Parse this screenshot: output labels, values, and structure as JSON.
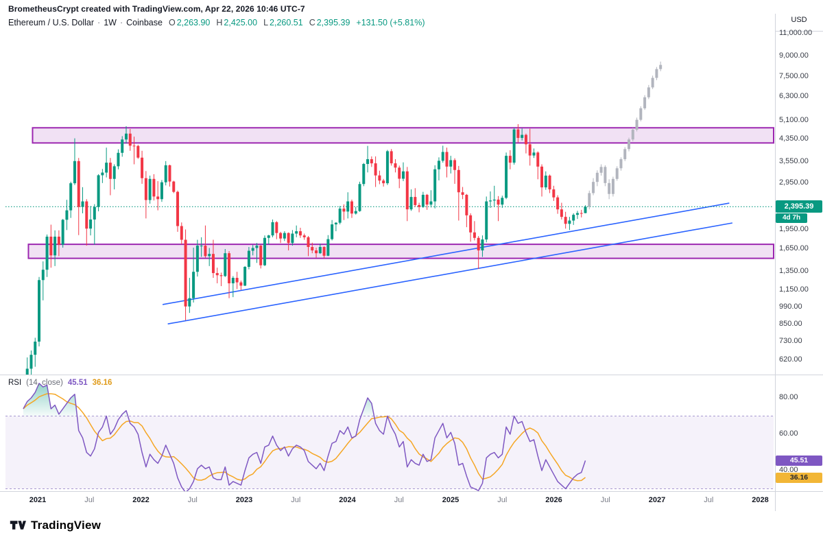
{
  "header": {
    "attribution": "BrometheusCrypt created with TradingView.com, Apr 22, 2026 10:46 UTC-7",
    "symbol": "Ethereum / U.S. Dollar",
    "separator": "·",
    "interval": "1W",
    "exchange": "Coinbase",
    "ohlc": {
      "o_label": "O",
      "o": "2,263.90",
      "h_label": "H",
      "h": "2,425.00",
      "l_label": "L",
      "l": "2,260.51",
      "c_label": "C",
      "c": "2,395.39",
      "change": "+131.50 (+5.81%)"
    }
  },
  "price_axis": {
    "currency_label": "USD",
    "ticks": [
      "11,000.00",
      "9,000.00",
      "7,500.00",
      "6,300.00",
      "5,100.00",
      "4,350.00",
      "3,550.00",
      "2,950.00",
      "1,950.00",
      "1,650.00",
      "1,350.00",
      "1,150.00",
      "990.00",
      "850.00",
      "730.00",
      "620.00"
    ],
    "tick_values": [
      11000,
      9000,
      7500,
      6300,
      5100,
      4350,
      3550,
      2950,
      1950,
      1650,
      1350,
      1150,
      990,
      850,
      730,
      620
    ],
    "last_price_label": "2,395.39",
    "countdown": "4d 7h"
  },
  "rsi_pane": {
    "label": "RSI",
    "params": "(14, close)",
    "value": "45.51",
    "ma_value": "36.16",
    "ticks": [
      "80.00",
      "60.00",
      "40.00"
    ],
    "tick_values": [
      80,
      60,
      40
    ]
  },
  "logo": {
    "text": "TradingView"
  },
  "colors": {
    "up": "#089981",
    "down": "#f23645",
    "projection": "#b2b5be",
    "zone_fill": "rgba(156,39,176,0.14)",
    "zone_border": "#9c27b0",
    "trendline": "#2962ff",
    "price_line": "#089981",
    "rsi": "#7e57c2",
    "rsi_ma": "#f5a623",
    "rsi_band_fill": "rgba(126,87,194,0.08)",
    "rsi_band_border": "#a697cf",
    "overbought_fill": "#089981",
    "badge_price_bg": "#089981",
    "rsi_badge_bg": "#7e57c2",
    "rsi_ma_badge_bg": "#f2b636",
    "separator": "#d1d4dc"
  },
  "chart_data": {
    "type": "candlestick",
    "title": "Ethereum / U.S. Dollar · 1W · Coinbase",
    "scale": "logarithmic",
    "x_axis": {
      "start_year_frac": 2020.86,
      "step_years": 0.03835,
      "labels": [
        {
          "t": 2021,
          "text": "2021",
          "major": true
        },
        {
          "t": 2021.5,
          "text": "Jul",
          "major": false
        },
        {
          "t": 2022,
          "text": "2022",
          "major": true
        },
        {
          "t": 2022.5,
          "text": "Jul",
          "major": false
        },
        {
          "t": 2023,
          "text": "2023",
          "major": true
        },
        {
          "t": 2023.5,
          "text": "Jul",
          "major": false
        },
        {
          "t": 2024,
          "text": "2024",
          "major": true
        },
        {
          "t": 2024.5,
          "text": "Jul",
          "major": false
        },
        {
          "t": 2025,
          "text": "2025",
          "major": true
        },
        {
          "t": 2025.5,
          "text": "Jul",
          "major": false
        },
        {
          "t": 2026,
          "text": "2026",
          "major": true
        },
        {
          "t": 2026.5,
          "text": "Jul",
          "major": false
        },
        {
          "t": 2027,
          "text": "2027",
          "major": true
        },
        {
          "t": 2027.5,
          "text": "Jul",
          "major": false
        },
        {
          "t": 2028,
          "text": "2028",
          "major": true
        }
      ]
    },
    "y_axis": {
      "scale": "logarithmic",
      "ticks": [
        11000,
        9000,
        7500,
        6300,
        5100,
        4350,
        3550,
        2950,
        1950,
        1650,
        1350,
        1150,
        990,
        850,
        730,
        620
      ]
    },
    "last_price": 2395.39,
    "price_line": 2395.39,
    "candles_ohlc": [
      [
        450,
        520,
        435,
        510
      ],
      [
        510,
        635,
        480,
        575
      ],
      [
        575,
        675,
        530,
        650
      ],
      [
        650,
        755,
        585,
        730
      ],
      [
        730,
        1290,
        700,
        1255
      ],
      [
        1255,
        1480,
        1050,
        1375
      ],
      [
        1375,
        1875,
        1290,
        1840
      ],
      [
        1840,
        2045,
        1400,
        1560
      ],
      [
        1560,
        1945,
        1420,
        1840
      ],
      [
        1840,
        1945,
        1550,
        1715
      ],
      [
        1715,
        2150,
        1670,
        2135
      ],
      [
        2135,
        2545,
        1950,
        2320
      ],
      [
        2320,
        2985,
        2170,
        2945
      ],
      [
        2945,
        4375,
        2900,
        3580
      ],
      [
        3580,
        3680,
        1865,
        2390
      ],
      [
        2390,
        2845,
        2260,
        2510
      ],
      [
        2510,
        2560,
        1700,
        1975
      ],
      [
        1975,
        2410,
        1860,
        2140
      ],
      [
        2140,
        2450,
        1715,
        2390
      ],
      [
        2390,
        3190,
        2300,
        3160
      ],
      [
        3160,
        3340,
        2950,
        3235
      ],
      [
        3235,
        4030,
        3100,
        3530
      ],
      [
        3530,
        3680,
        2650,
        3060
      ],
      [
        3060,
        3480,
        2790,
        3420
      ],
      [
        3420,
        3970,
        3330,
        3850
      ],
      [
        3850,
        4460,
        3720,
        4330
      ],
      [
        4330,
        4868,
        4180,
        4560
      ],
      [
        4560,
        4750,
        3920,
        4100
      ],
      [
        4100,
        4440,
        3480,
        4090
      ],
      [
        4090,
        4130,
        3650,
        3690
      ],
      [
        3690,
        3920,
        2930,
        3080
      ],
      [
        3080,
        3280,
        2160,
        2540
      ],
      [
        2540,
        3150,
        2460,
        3060
      ],
      [
        3060,
        3190,
        2530,
        2620
      ],
      [
        2620,
        3000,
        2320,
        2560
      ],
      [
        2560,
        3030,
        2500,
        2970
      ],
      [
        2970,
        3580,
        2890,
        3450
      ],
      [
        3450,
        3470,
        2860,
        2990
      ],
      [
        2990,
        3010,
        2700,
        2730
      ],
      [
        2730,
        2760,
        1920,
        2020
      ],
      [
        2020,
        2085,
        1720,
        1790
      ],
      [
        1790,
        1960,
        880,
        995
      ],
      [
        995,
        1280,
        940,
        1070
      ],
      [
        1070,
        1670,
        1030,
        1350
      ],
      [
        1350,
        1790,
        1295,
        1700
      ],
      [
        1700,
        1830,
        1540,
        1700
      ],
      [
        1700,
        2030,
        1530,
        1550
      ],
      [
        1550,
        1665,
        1420,
        1580
      ],
      [
        1580,
        1790,
        1280,
        1335
      ],
      [
        1335,
        1400,
        1220,
        1310
      ],
      [
        1310,
        1340,
        1190,
        1300
      ],
      [
        1300,
        1650,
        1290,
        1590
      ],
      [
        1590,
        1620,
        1070,
        1220
      ],
      [
        1220,
        1300,
        1080,
        1280
      ],
      [
        1280,
        1350,
        1160,
        1230
      ],
      [
        1230,
        1250,
        1150,
        1195
      ],
      [
        1195,
        1420,
        1190,
        1410
      ],
      [
        1410,
        1680,
        1380,
        1625
      ],
      [
        1625,
        1710,
        1560,
        1665
      ],
      [
        1665,
        1740,
        1460,
        1700
      ],
      [
        1700,
        1710,
        1390,
        1430
      ],
      [
        1430,
        1860,
        1420,
        1820
      ],
      [
        1820,
        1870,
        1720,
        1860
      ],
      [
        1860,
        2140,
        1830,
        2090
      ],
      [
        2090,
        2110,
        1800,
        1900
      ],
      [
        1900,
        1920,
        1740,
        1810
      ],
      [
        1810,
        1930,
        1770,
        1900
      ],
      [
        1900,
        1910,
        1630,
        1740
      ],
      [
        1740,
        1950,
        1700,
        1890
      ],
      [
        1890,
        2030,
        1830,
        1930
      ],
      [
        1930,
        1990,
        1820,
        1860
      ],
      [
        1860,
        1890,
        1790,
        1830
      ],
      [
        1830,
        1850,
        1550,
        1680
      ],
      [
        1680,
        1745,
        1590,
        1630
      ],
      [
        1630,
        1670,
        1530,
        1590
      ],
      [
        1590,
        1730,
        1580,
        1680
      ],
      [
        1680,
        1690,
        1520,
        1555
      ],
      [
        1555,
        1865,
        1550,
        1800
      ],
      [
        1800,
        2130,
        1780,
        2050
      ],
      [
        2050,
        2090,
        1930,
        2080
      ],
      [
        2080,
        2410,
        2050,
        2355
      ],
      [
        2355,
        2445,
        2130,
        2295
      ],
      [
        2295,
        2720,
        2160,
        2510
      ],
      [
        2510,
        2550,
        2170,
        2255
      ],
      [
        2255,
        2390,
        2235,
        2305
      ],
      [
        2305,
        2985,
        2290,
        2925
      ],
      [
        2925,
        3520,
        2870,
        3490
      ],
      [
        3490,
        4093,
        3240,
        3640
      ],
      [
        3640,
        3730,
        3400,
        3510
      ],
      [
        3510,
        3730,
        2850,
        3155
      ],
      [
        3155,
        3290,
        2920,
        3015
      ],
      [
        3015,
        3060,
        2860,
        2945
      ],
      [
        2945,
        3950,
        2900,
        3905
      ],
      [
        3905,
        3980,
        3440,
        3510
      ],
      [
        3510,
        3640,
        3240,
        3380
      ],
      [
        3380,
        3440,
        2820,
        3065
      ],
      [
        3065,
        3540,
        3000,
        3270
      ],
      [
        3270,
        3400,
        2110,
        2340
      ],
      [
        2340,
        2790,
        2310,
        2610
      ],
      [
        2610,
        2820,
        2390,
        2430
      ],
      [
        2430,
        2480,
        2280,
        2390
      ],
      [
        2390,
        2730,
        2370,
        2660
      ],
      [
        2660,
        2680,
        2330,
        2440
      ],
      [
        2440,
        2770,
        2380,
        2510
      ],
      [
        2510,
        3450,
        2360,
        3330
      ],
      [
        3330,
        3700,
        3020,
        3590
      ],
      [
        3590,
        4100,
        3530,
        3880
      ],
      [
        3880,
        4030,
        3100,
        3410
      ],
      [
        3410,
        3750,
        3210,
        3610
      ],
      [
        3610,
        3670,
        2930,
        3310
      ],
      [
        3310,
        3430,
        2120,
        2720
      ],
      [
        2720,
        2850,
        2560,
        2660
      ],
      [
        2660,
        2680,
        2000,
        2220
      ],
      [
        2220,
        2260,
        1760,
        1910
      ],
      [
        1910,
        2110,
        1780,
        1820
      ],
      [
        1820,
        1850,
        1385,
        1630
      ],
      [
        1630,
        1860,
        1540,
        1795
      ],
      [
        1795,
        2620,
        1750,
        2510
      ],
      [
        2510,
        2740,
        2370,
        2530
      ],
      [
        2530,
        2880,
        2390,
        2550
      ],
      [
        2550,
        2630,
        2110,
        2440
      ],
      [
        2440,
        2640,
        2370,
        2590
      ],
      [
        2590,
        3860,
        2560,
        3750
      ],
      [
        3750,
        3940,
        3330,
        3530
      ],
      [
        3530,
        4790,
        3470,
        4730
      ],
      [
        4730,
        4956,
        4220,
        4390
      ],
      [
        4390,
        4770,
        4290,
        4510
      ],
      [
        4510,
        4560,
        3830,
        4150
      ],
      [
        4150,
        4760,
        3440,
        3760
      ],
      [
        3760,
        4000,
        3680,
        3860
      ],
      [
        3860,
        3900,
        3050,
        3410
      ],
      [
        3410,
        3480,
        2620,
        2840
      ],
      [
        2840,
        3270,
        2780,
        3150
      ],
      [
        3150,
        3180,
        2700,
        2790
      ],
      [
        2790,
        2880,
        2520,
        2600
      ],
      [
        2600,
        2650,
        2250,
        2340
      ],
      [
        2340,
        2480,
        2140,
        2190
      ],
      [
        2190,
        2290,
        1975,
        2060
      ],
      [
        2060,
        2190,
        1950,
        2120
      ],
      [
        2120,
        2260,
        2040,
        2230
      ],
      [
        2230,
        2310,
        2150,
        2265
      ],
      [
        2265,
        2330,
        2180,
        2264
      ],
      [
        2263.9,
        2425,
        2260.51,
        2395.39
      ]
    ],
    "projection_candles_ohlc": [
      [
        2395,
        2760,
        2340,
        2700
      ],
      [
        2700,
        3080,
        2650,
        2980
      ],
      [
        2980,
        3300,
        2870,
        3230
      ],
      [
        3230,
        3480,
        3150,
        3400
      ],
      [
        3400,
        3450,
        2870,
        2950
      ],
      [
        2950,
        3050,
        2560,
        2680
      ],
      [
        2680,
        3120,
        2620,
        3060
      ],
      [
        3060,
        3420,
        3010,
        3360
      ],
      [
        3360,
        3700,
        3290,
        3640
      ],
      [
        3640,
        4050,
        3580,
        3980
      ],
      [
        3980,
        4400,
        3900,
        4330
      ],
      [
        4330,
        4800,
        4260,
        4720
      ],
      [
        4720,
        5250,
        4650,
        5150
      ],
      [
        5150,
        5800,
        5080,
        5700
      ],
      [
        5700,
        6400,
        5620,
        6280
      ],
      [
        6280,
        7000,
        6180,
        6850
      ],
      [
        6850,
        7600,
        6750,
        7450
      ],
      [
        7450,
        8200,
        7300,
        8050
      ],
      [
        8050,
        8600,
        7900,
        8350
      ]
    ],
    "supply_demand_zones": [
      {
        "price_from": 4200,
        "price_to": 4800,
        "start_t": 2020.95
      },
      {
        "price_from": 1520,
        "price_to": 1720,
        "start_t": 2020.91
      }
    ],
    "trendlines": [
      {
        "t1": 2022.26,
        "p1": 853,
        "t2": 2027.73,
        "p2": 2076
      },
      {
        "t1": 2022.21,
        "p1": 1012,
        "t2": 2027.7,
        "p2": 2472
      }
    ],
    "rsi": {
      "levels": {
        "overbought": 70,
        "oversold": 30
      },
      "last": 45.51,
      "ma_last": 36.16,
      "values": [
        74,
        78,
        80,
        83,
        88,
        86,
        87,
        74,
        76,
        71,
        74,
        77,
        80,
        82,
        62,
        58,
        50,
        48,
        52,
        61,
        64,
        70,
        60,
        63,
        68,
        71,
        73,
        66,
        64,
        60,
        50,
        42,
        49,
        46,
        44,
        48,
        54,
        49,
        44,
        36,
        31,
        28,
        30,
        34,
        41,
        43,
        41,
        42,
        36,
        35,
        35,
        42,
        32,
        34,
        33,
        32,
        40,
        47,
        49,
        50,
        44,
        53,
        54,
        59,
        54,
        51,
        53,
        48,
        52,
        54,
        53,
        51,
        45,
        43,
        41,
        44,
        40,
        48,
        55,
        56,
        62,
        60,
        64,
        58,
        59,
        68,
        74,
        80,
        77,
        66,
        62,
        60,
        70,
        64,
        60,
        53,
        56,
        42,
        46,
        44,
        43,
        49,
        45,
        46,
        58,
        62,
        66,
        58,
        61,
        55,
        43,
        44,
        37,
        31,
        30,
        29,
        33,
        47,
        49,
        50,
        47,
        49,
        64,
        60,
        70,
        66,
        67,
        61,
        56,
        57,
        48,
        40,
        46,
        42,
        38,
        34,
        32,
        30,
        33,
        36,
        38,
        39,
        45.51
      ]
    }
  }
}
